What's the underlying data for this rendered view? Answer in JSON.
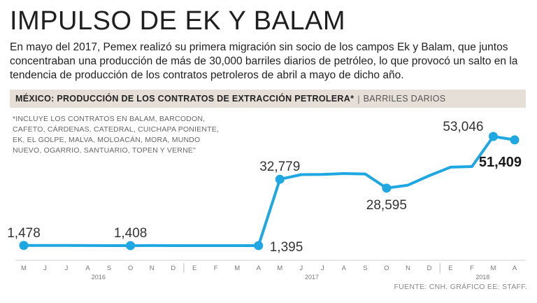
{
  "title": "IMPULSO DE EK Y BALAM",
  "intro": "En mayo del 2017, Pemex realizó su primera migración sin socio de los campos Ek y Balam, que juntos concentraban una producción de más de 30,000 barriles diarios de petróleo, lo que provocó un salto en la tendencia de producción de los contratos petroleros de abril a mayo de dicho año.",
  "chart_header": {
    "title": "MÉXICO: PRODUCCIÓN DE LOS CONTRATOS DE EXTRACCIÓN PETROLERA*",
    "units": "BARRILES DARIOS"
  },
  "note": "*INCLUYE LOS CONTRATOS EN BALAM, BARCODON, CAFETO, CÁRDENAS, CATEDRAL, CUICHAPA PONIENTE, EK, EL GOLPE, MALVA, MOLOACÁN, MORA, MUNDO NUEVO, OGARRIO, SANTUARIO, TOPEN Y VERNE\"",
  "source": "FUENTE: CNH. GRÁFICO EE: STAFF.",
  "colors": {
    "line": "#1ea7e1",
    "header_bar": "#e6dfd8",
    "text": "#222222",
    "axis": "#999999"
  },
  "chart_data": {
    "type": "line",
    "title": "MÉXICO: PRODUCCIÓN DE LOS CONTRATOS DE EXTRACCIÓN PETROLERA*",
    "ylabel": "BARRILES DARIOS",
    "xlabel": "",
    "categories": [
      "M",
      "J",
      "J",
      "A",
      "S",
      "O",
      "N",
      "D",
      "E",
      "F",
      "M",
      "A",
      "M",
      "J",
      "J",
      "A",
      "S",
      "O",
      "N",
      "D",
      "E",
      "F",
      "M",
      "A"
    ],
    "year_labels": [
      {
        "label": "2016",
        "start": 0,
        "end": 7
      },
      {
        "label": "2017",
        "start": 8,
        "end": 19
      },
      {
        "label": "2018",
        "start": 20,
        "end": 23
      }
    ],
    "series": [
      {
        "values": [
          1478,
          1500,
          1450,
          1420,
          1410,
          1408,
          1420,
          1410,
          1400,
          1398,
          1396,
          1395,
          32779,
          35000,
          35100,
          35500,
          35300,
          28595,
          30000,
          34500,
          38500,
          38800,
          53046,
          51409
        ]
      }
    ],
    "ylim": [
      0,
      58000
    ],
    "labels": [
      {
        "index": 0,
        "text": "1,478",
        "bold": false,
        "pos": "above"
      },
      {
        "index": 5,
        "text": "1,408",
        "bold": false,
        "pos": "above"
      },
      {
        "index": 11,
        "text": "1,395",
        "bold": false,
        "pos": "right"
      },
      {
        "index": 12,
        "text": "32,779",
        "bold": false,
        "pos": "above"
      },
      {
        "index": 17,
        "text": "28,595",
        "bold": false,
        "pos": "below"
      },
      {
        "index": 22,
        "text": "53,046",
        "bold": false,
        "pos": "left"
      },
      {
        "index": 23,
        "text": "51,409",
        "bold": true,
        "pos": "below"
      }
    ],
    "marker_indices": [
      0,
      5,
      11,
      12,
      17,
      22,
      23
    ],
    "grid": false,
    "legend": "none"
  }
}
